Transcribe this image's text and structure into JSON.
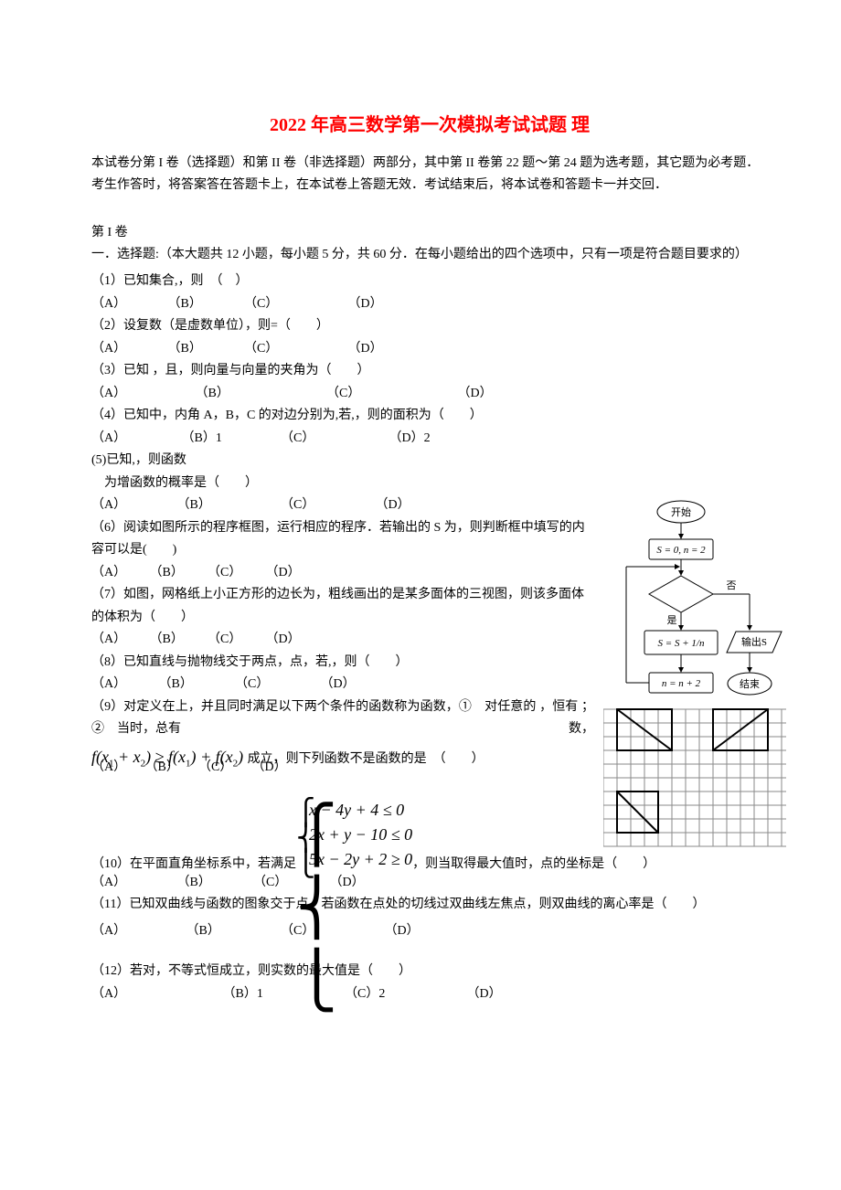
{
  "title": "2022 年高三数学第一次模拟考试试题  理",
  "intro": "本试卷分第 I 卷（选择题）和第 II 卷（非选择题）两部分，其中第 II 卷第 22 题～第 24 题为选考题，其它题为必考题．考生作答时，将答案答在答题卡上，在本试卷上答题无效．考试结束后，将本试卷和答题卡一并交回．",
  "part_label": "第 I 卷",
  "directions": "一．选择题:（本大题共 12 小题，每小题 5 分，共 60 分．在每小题给出的四个选项中，只有一项是符合题目要求的）",
  "q1": {
    "stem": "（1）已知集合,，则　（　）",
    "a": "（A）",
    "b": "（B）",
    "c": "（C）",
    "d": "（D）",
    "wa": 80,
    "wb": 80,
    "wc": 110,
    "wd": 60
  },
  "q2": {
    "stem": "（2）设复数（是虚数单位），则=（　　）",
    "a": "（A）",
    "b": "（B）",
    "c": "（C）",
    "d": "（D）",
    "wa": 80,
    "wb": 80,
    "wc": 110,
    "wd": 60
  },
  "q3": {
    "stem": "（3）已知  ，且，则向量与向量的夹角为（　　）",
    "a": "（A）",
    "b": "（B）",
    "c": "（C）",
    "d": "（D）",
    "wa": 110,
    "wb": 140,
    "wc": 140,
    "wd": 60
  },
  "q4": {
    "stem": "（4）已知中，内角 A，B，C 的对边分别为,若,，则的面积为（　　）",
    "a": "（A）",
    "b": "（B）1",
    "c": "（C）",
    "d": "（D）2",
    "wa": 95,
    "wb": 105,
    "wc": 115,
    "wd": 60
  },
  "q5": {
    "stem1": "(5)已知,，则函数",
    "stem2": "　为增函数的概率是（　　）",
    "a": "（A）",
    "b": "（B）",
    "c": "（C）",
    "d": "（D）",
    "wa": 90,
    "wb": 110,
    "wc": 100,
    "wd": 60
  },
  "q6": {
    "stem": "（6）阅读如图所示的程序框图，运行相应的程序．若输出的 S  为，则判断框中填写的内容可以是(　　)",
    "a": "（A）",
    "b": "（B）",
    "c": "（C）",
    "d": "（D）",
    "wa": 60,
    "wb": 60,
    "wc": 60,
    "wd": 60
  },
  "q7": {
    "stem": "（7）如图，网格纸上小正方形的边长为，粗线画出的是某多面体的三视图，则该多面体的体积为（　　）",
    "a": "（A）",
    "b": "（B）",
    "c": "（C）",
    "d": "（D）",
    "wa": 60,
    "wb": 60,
    "wc": 60,
    "wd": 60
  },
  "q8": {
    "stem": "（8）已知直线与抛物线交于两点，点，若,，则（　　）",
    "a": "（A）",
    "b": "（B）",
    "c": "（C）",
    "d": "（D）",
    "wa": 70,
    "wb": 80,
    "wc": 90,
    "wd": 60
  },
  "q9": {
    "stem": "（9）对定义在上，并且同时满足以下两个条件的函数称为函数，①　对任意的 ，恒有 ；②　当时，总有",
    "tail": "成立，则下列函数不是函数的是　（　　）",
    "a": "（A）",
    "b": "（B）",
    "c": "（C）",
    "d": "（D）"
  },
  "q10": {
    "pre": "（10）在平面直角坐标系中，若满足 ",
    "eq1": "x − 4y + 4 ≤ 0",
    "eq2": "2x + y − 10 ≤ 0",
    "eq3": "5x − 2y + 2 ≥ 0",
    "post": " ，则当取得最大值时，点的坐标是（　　）",
    "a": "（A）",
    "b": "（B）",
    "c": "（C）",
    "d": "（D）",
    "wa": 90,
    "wb": 80,
    "wc": 80,
    "wd": 60
  },
  "q11": {
    "stem": "（11）已知双曲线与函数的图象交于点，若函数在点处的切线过双曲线左焦点，则双曲线的离心率是（　　）",
    "a": "（A）",
    "b": "（B）",
    "c": "（C）",
    "d": "（D）",
    "wa": 100,
    "wb": 100,
    "wc": 110,
    "wd": 60
  },
  "q12": {
    "stem": "（12）若对，不等式恒成立，则实数的最大值是（　　）",
    "a": "（A）",
    "b": "（B）1",
    "c": "（C）2",
    "d": "（D）",
    "wa": 140,
    "wb": 130,
    "wc": 130,
    "wd": 60
  },
  "diagram": {
    "start_label": "开始",
    "init_label": "S = 0, n = 2",
    "yes": "是",
    "no": "否",
    "calc": "S = S + 1/n",
    "step": "n = n + 2",
    "out": "输出S",
    "end": "结束",
    "colors": {
      "line": "#000000",
      "fill": "#ffffff",
      "grid": "#8a8a8a"
    }
  }
}
